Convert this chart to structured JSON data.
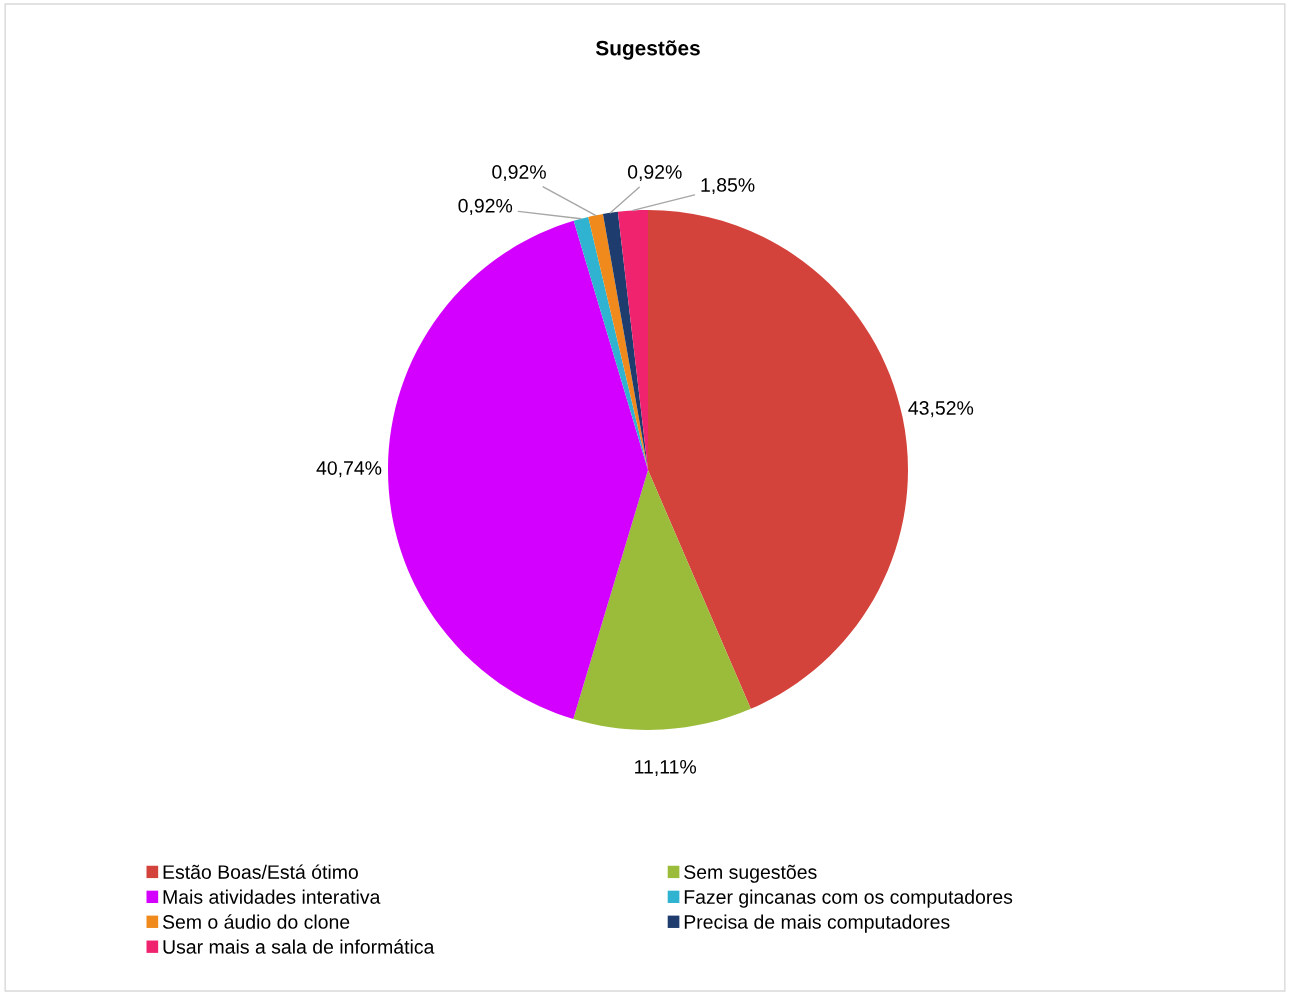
{
  "chart_data": {
    "type": "pie",
    "title": "Sugestões",
    "categories": [
      "Estão Boas/Está ótimo",
      "Sem sugestões",
      "Mais atividades interativa",
      "Fazer gincanas com os computadores",
      "Sem o áudio do clone",
      "Precisa de mais computadores",
      "Usar mais a sala de informática"
    ],
    "values": [
      43.52,
      11.11,
      40.74,
      0.92,
      0.92,
      0.92,
      1.85
    ],
    "value_labels": [
      "43,52%",
      "11,11%",
      "40,74%",
      "0,92%",
      "0,92%",
      "0,92%",
      "1,85%"
    ],
    "colors": [
      "#d4433b",
      "#9bbb3b",
      "#d400ff",
      "#2fb3d0",
      "#f08a1c",
      "#1f3c6e",
      "#f0246e"
    ],
    "legend": "bottom"
  }
}
